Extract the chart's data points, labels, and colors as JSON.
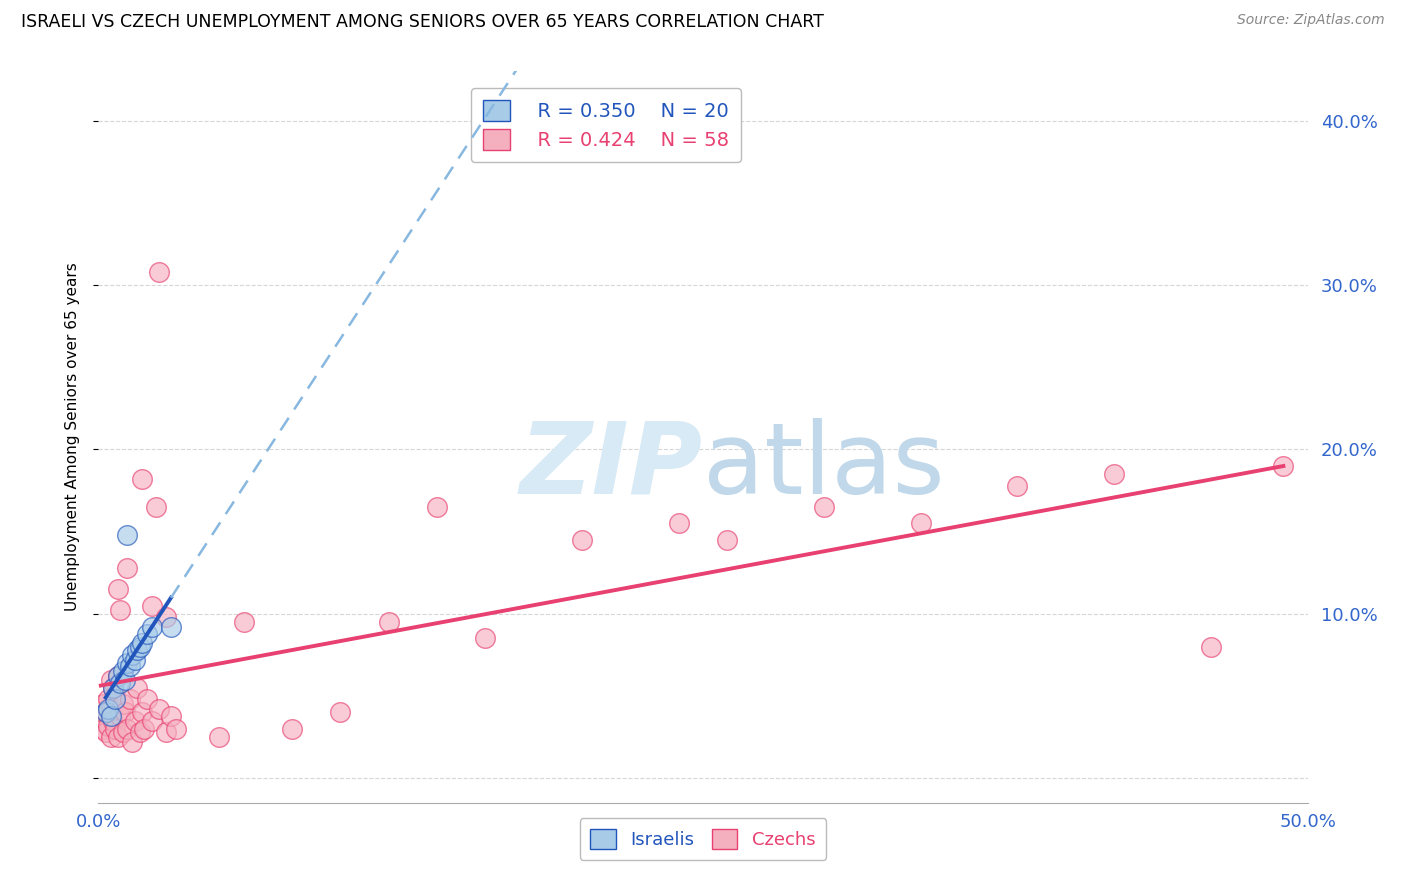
{
  "title": "ISRAELI VS CZECH UNEMPLOYMENT AMONG SENIORS OVER 65 YEARS CORRELATION CHART",
  "source": "Source: ZipAtlas.com",
  "ylabel": "Unemployment Among Seniors over 65 years",
  "ytick_values": [
    0.0,
    0.1,
    0.2,
    0.3,
    0.4
  ],
  "ytick_labels": [
    "",
    "10.0%",
    "20.0%",
    "30.0%",
    "40.0%"
  ],
  "xtick_values": [
    0.0,
    0.1,
    0.2,
    0.3,
    0.4,
    0.5
  ],
  "xlim": [
    0.0,
    0.5
  ],
  "ylim": [
    -0.015,
    0.43
  ],
  "legend_r_israeli": "R = 0.350",
  "legend_n_israeli": "N = 20",
  "legend_r_czech": "R = 0.424",
  "legend_n_czech": "N = 58",
  "israeli_color": "#a8cce8",
  "czech_color": "#f5b0c0",
  "israeli_line_color": "#2255bb",
  "czech_line_color": "#e84070",
  "israeli_dashed_color": "#88b8e0",
  "watermark_zip_color": "#d8eaf5",
  "watermark_atlas_color": "#c0d8ea",
  "israeli_x": [
    0.003,
    0.004,
    0.005,
    0.006,
    0.007,
    0.008,
    0.009,
    0.01,
    0.011,
    0.012,
    0.013,
    0.014,
    0.015,
    0.016,
    0.017,
    0.018,
    0.02,
    0.022,
    0.012,
    0.03
  ],
  "israeli_y": [
    0.04,
    0.042,
    0.038,
    0.055,
    0.048,
    0.062,
    0.058,
    0.065,
    0.06,
    0.07,
    0.068,
    0.075,
    0.072,
    0.078,
    0.08,
    0.082,
    0.088,
    0.092,
    0.148,
    0.092
  ],
  "czech_x": [
    0.001,
    0.002,
    0.002,
    0.003,
    0.003,
    0.004,
    0.004,
    0.005,
    0.005,
    0.005,
    0.006,
    0.006,
    0.007,
    0.007,
    0.008,
    0.008,
    0.009,
    0.01,
    0.01,
    0.011,
    0.012,
    0.013,
    0.014,
    0.015,
    0.016,
    0.017,
    0.018,
    0.019,
    0.02,
    0.022,
    0.025,
    0.028,
    0.03,
    0.032,
    0.008,
    0.009,
    0.012,
    0.018,
    0.022,
    0.024,
    0.028,
    0.05,
    0.06,
    0.08,
    0.1,
    0.12,
    0.14,
    0.16,
    0.2,
    0.24,
    0.26,
    0.3,
    0.34,
    0.38,
    0.42,
    0.46,
    0.49,
    0.025
  ],
  "czech_y": [
    0.035,
    0.03,
    0.045,
    0.028,
    0.04,
    0.032,
    0.048,
    0.025,
    0.042,
    0.06,
    0.035,
    0.055,
    0.03,
    0.05,
    0.025,
    0.062,
    0.038,
    0.028,
    0.045,
    0.04,
    0.03,
    0.048,
    0.022,
    0.035,
    0.055,
    0.028,
    0.04,
    0.03,
    0.048,
    0.035,
    0.042,
    0.028,
    0.038,
    0.03,
    0.115,
    0.102,
    0.128,
    0.182,
    0.105,
    0.165,
    0.098,
    0.025,
    0.095,
    0.03,
    0.04,
    0.095,
    0.165,
    0.085,
    0.145,
    0.155,
    0.145,
    0.165,
    0.155,
    0.178,
    0.185,
    0.08,
    0.19,
    0.308
  ]
}
